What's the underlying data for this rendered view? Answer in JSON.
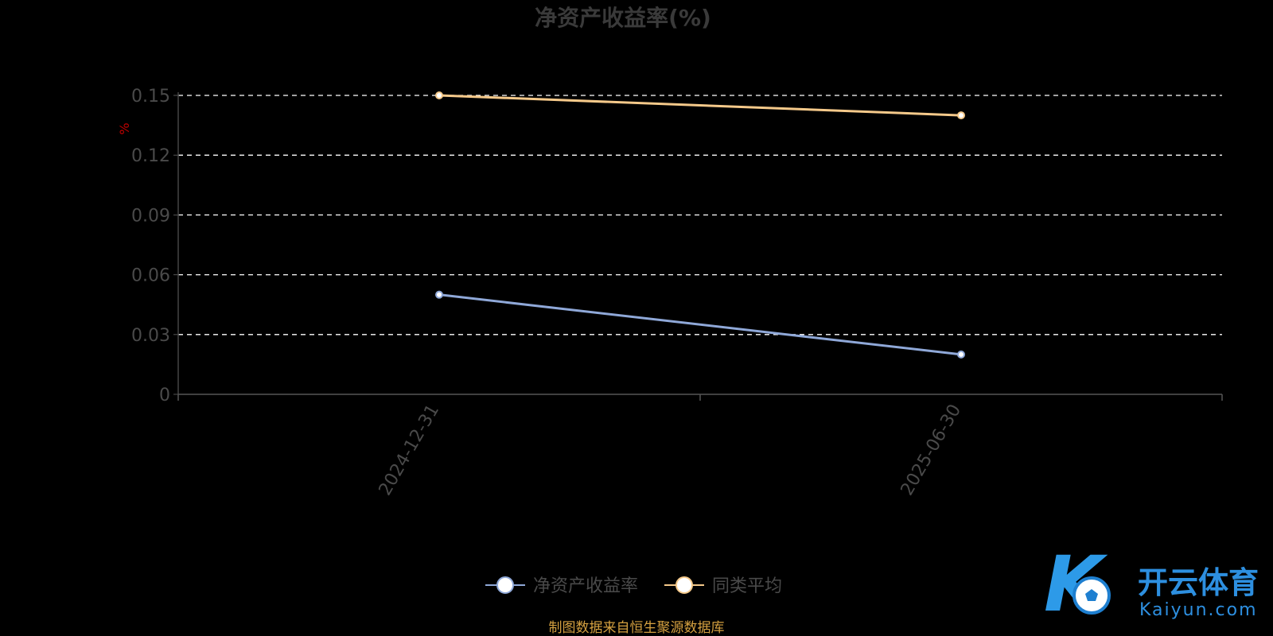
{
  "chart_data": {
    "type": "line",
    "title": "净资产收益率(%)",
    "ylabel": "%",
    "x": [
      "2024-12-31",
      "2025-06-30"
    ],
    "ylim": [
      0,
      0.15
    ],
    "yticks": [
      "0",
      "0.03",
      "0.06",
      "0.09",
      "0.12",
      "0.15"
    ],
    "grid": true,
    "legend_position": "bottom-center",
    "series": [
      {
        "name": "净资产收益率",
        "values": [
          0.05,
          0.02
        ],
        "color": "#8fa8d8"
      },
      {
        "name": "同类平均",
        "values": [
          0.15,
          0.14
        ],
        "color": "#f5c98a"
      }
    ]
  },
  "source_note": "制图数据来自恒生聚源数据库",
  "watermark": {
    "brand_cn": "开云体育",
    "brand_en": "Kaiyun.com",
    "logo_letter": "K",
    "icon": "soccer-ball-icon"
  }
}
